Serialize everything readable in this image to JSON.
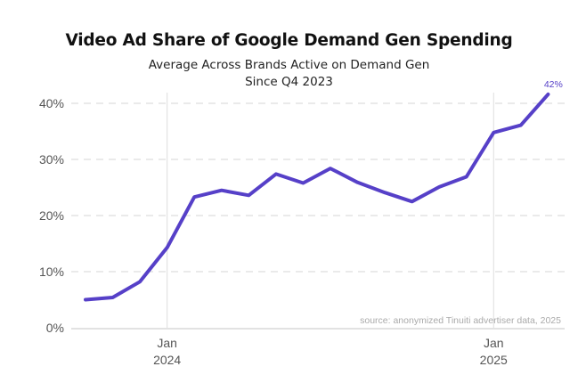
{
  "chart_data": {
    "type": "line",
    "title": "Video Ad Share of Google Demand Gen Spending",
    "subtitle_line1": "Average Across Brands Active on Demand Gen",
    "subtitle_line2": "Since Q4 2023",
    "xlabel": "",
    "ylabel": "",
    "x": [
      "2023-10",
      "2023-11",
      "2023-12",
      "2024-01",
      "2024-02",
      "2024-03",
      "2024-04",
      "2024-05",
      "2024-06",
      "2024-07",
      "2024-08",
      "2024-09",
      "2024-10",
      "2024-11",
      "2024-12",
      "2025-01",
      "2025-02",
      "2025-03"
    ],
    "series": [
      {
        "name": "Video Ad Share",
        "color": "#5640c8",
        "values": [
          5.0,
          5.4,
          8.2,
          14.3,
          23.3,
          24.5,
          23.6,
          27.4,
          25.8,
          28.4,
          25.9,
          24.1,
          22.5,
          25.1,
          26.9,
          34.8,
          36.1,
          41.6
        ]
      }
    ],
    "ylim": [
      0,
      42
    ],
    "yticks": [
      0,
      10,
      20,
      30,
      40
    ],
    "ytick_labels": [
      "0%",
      "10%",
      "20%",
      "30%",
      "40%"
    ],
    "xticks": [
      {
        "index": 3,
        "label_line1": "Jan",
        "label_line2": "2024"
      },
      {
        "index": 15,
        "label_line1": "Jan",
        "label_line2": "2025"
      }
    ],
    "grid": "horizontal-dashed",
    "end_label": "42%",
    "source": "source: anonymized Tinuiti advertiser data, 2025",
    "legend": "none"
  }
}
